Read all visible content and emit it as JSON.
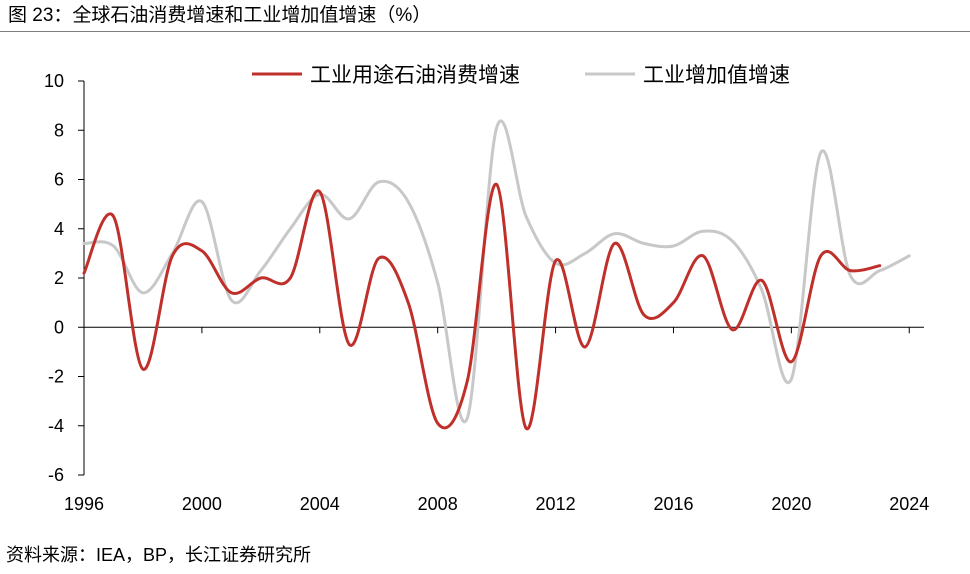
{
  "figure": {
    "title": "图 23：全球石油消费增速和工业增加值增速（%）",
    "source": "资料来源：IEA，BP，长江证券研究所"
  },
  "chart_data": {
    "type": "line",
    "title": "",
    "xlabel": "",
    "ylabel": "",
    "xlim": [
      1996,
      2024.5
    ],
    "ylim": [
      -6,
      10
    ],
    "x_ticks": [
      1996,
      2000,
      2004,
      2008,
      2012,
      2016,
      2020,
      2024
    ],
    "y_ticks": [
      -6,
      -4,
      -2,
      0,
      2,
      4,
      6,
      8,
      10
    ],
    "grid": false,
    "legend_position": "top",
    "series": [
      {
        "name": "工业用途石油消费增速",
        "color": "#C0302B",
        "x": [
          1996,
          1997,
          1998,
          1999,
          2000,
          2001,
          2002,
          2003,
          2004,
          2005,
          2006,
          2007,
          2008,
          2009,
          2010,
          2011,
          2012,
          2013,
          2014,
          2015,
          2016,
          2017,
          2018,
          2019,
          2020,
          2021,
          2022,
          2023
        ],
        "values": [
          2.2,
          4.5,
          -1.7,
          2.9,
          3.1,
          1.4,
          2.0,
          2.0,
          5.5,
          -0.7,
          2.8,
          1.0,
          -3.9,
          -2.2,
          5.8,
          -4.1,
          2.7,
          -0.8,
          3.4,
          0.5,
          1.0,
          2.9,
          -0.1,
          1.9,
          -1.4,
          2.9,
          2.3,
          2.5
        ]
      },
      {
        "name": "工业增加值增速",
        "color": "#C8C8C8",
        "x": [
          1996,
          1997,
          1998,
          1999,
          2000,
          2001,
          2002,
          2003,
          2004,
          2005,
          2006,
          2007,
          2008,
          2009,
          2010,
          2011,
          2012,
          2013,
          2014,
          2015,
          2016,
          2017,
          2018,
          2019,
          2020,
          2021,
          2022,
          2023,
          2024
        ],
        "values": [
          3.4,
          3.3,
          1.4,
          3.0,
          5.1,
          1.1,
          2.3,
          4.0,
          5.4,
          4.4,
          5.9,
          5.1,
          1.8,
          -3.7,
          8.1,
          4.5,
          2.6,
          3.0,
          3.8,
          3.4,
          3.3,
          3.9,
          3.5,
          1.5,
          -2.1,
          7.1,
          2.1,
          2.3,
          2.9
        ]
      }
    ]
  }
}
